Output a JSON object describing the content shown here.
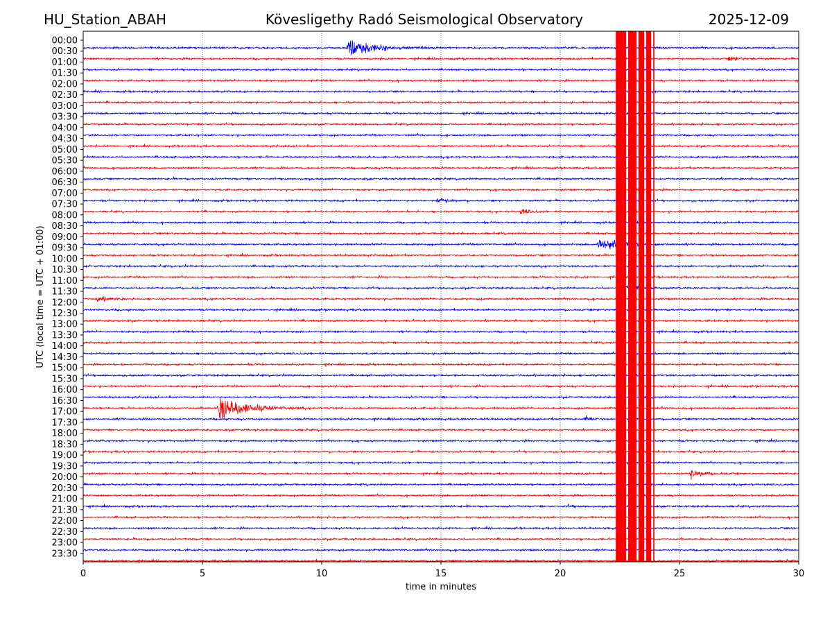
{
  "chart_data": {
    "type": "line",
    "title_left": "HU_Station_ABAH",
    "title": "Kövesligethy Radó Seismological Observatory",
    "title_right": "2025-12-09",
    "xlabel": "time in minutes",
    "ylabel": "UTC (local time = UTC + 01:00)",
    "xlim": [
      0,
      30
    ],
    "xticks": [
      "0",
      "5",
      "10",
      "15",
      "20",
      "25",
      "30"
    ],
    "grid": "vertical dotted at x ticks",
    "yticks": [
      "00:00",
      "00:30",
      "01:00",
      "01:30",
      "02:00",
      "02:30",
      "03:00",
      "03:30",
      "04:00",
      "04:30",
      "05:00",
      "05:30",
      "06:00",
      "06:30",
      "07:00",
      "07:30",
      "08:00",
      "08:30",
      "09:00",
      "09:30",
      "10:00",
      "10:30",
      "11:00",
      "11:30",
      "12:00",
      "12:30",
      "13:00",
      "13:30",
      "14:00",
      "14:30",
      "15:00",
      "15:30",
      "16:00",
      "16:30",
      "17:00",
      "17:30",
      "18:00",
      "18:30",
      "19:00",
      "19:30",
      "20:00",
      "20:30",
      "21:00",
      "21:30",
      "22:00",
      "22:30",
      "23:00",
      "23:30"
    ],
    "trace_count": 48,
    "trace_colors": [
      "#0000ff",
      "#ff0000"
    ],
    "events": [
      {
        "trace": 0,
        "start_min": 11.0,
        "end_min": 15.0,
        "amplitude": 14
      },
      {
        "trace": 1,
        "start_min": 27.0,
        "end_min": 28.8,
        "amplitude": 3
      },
      {
        "trace": 14,
        "start_min": 14.8,
        "end_min": 16.5,
        "amplitude": 4
      },
      {
        "trace": 15,
        "start_min": 18.3,
        "end_min": 19.8,
        "amplitude": 4
      },
      {
        "trace": 18,
        "start_min": 21.5,
        "end_min": 25.0,
        "amplitude": 10
      },
      {
        "trace": 22,
        "start_min": 22.5,
        "end_min": 24.8,
        "amplitude": 5
      },
      {
        "trace": 23,
        "start_min": 0.5,
        "end_min": 2.2,
        "amplitude": 4
      },
      {
        "trace": 33,
        "start_min": 5.6,
        "end_min": 9.5,
        "amplitude": 20
      },
      {
        "trace": 34,
        "start_min": 21.0,
        "end_min": 22.2,
        "amplitude": 4
      },
      {
        "trace": 39,
        "start_min": 25.4,
        "end_min": 27.5,
        "amplitude": 6
      },
      {
        "trace": 42,
        "start_min": 20.3,
        "end_min": 21.2,
        "amplitude": 2
      }
    ],
    "saturated_bands_min": [
      [
        22.33,
        22.76
      ],
      [
        22.85,
        23.2
      ],
      [
        23.28,
        23.52
      ],
      [
        23.6,
        23.81
      ],
      [
        23.9,
        23.95
      ]
    ]
  }
}
